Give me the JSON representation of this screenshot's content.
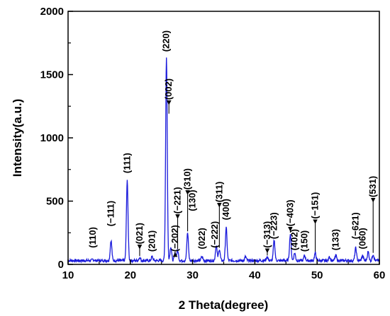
{
  "chart_data": {
    "type": "line",
    "title": "",
    "xlabel": "2 Theta(degree)",
    "ylabel": "Intensity(a.u.)",
    "xlim": [
      10,
      60
    ],
    "ylim": [
      0,
      2000
    ],
    "x_ticks": [
      "10",
      "20",
      "30",
      "40",
      "50",
      "60"
    ],
    "y_ticks": [
      "0",
      "500",
      "1000",
      "1500",
      "2000"
    ],
    "legend": "none",
    "grid": false,
    "line_color": "#1a1adb",
    "baseline": 30,
    "series": [
      {
        "peaks": [
          {
            "x": 14.0,
            "y": 40
          },
          {
            "x": 16.9,
            "y": 190
          },
          {
            "x": 19.5,
            "y": 660
          },
          {
            "x": 21.5,
            "y": 55
          },
          {
            "x": 23.5,
            "y": 60
          },
          {
            "x": 25.8,
            "y": 1640
          },
          {
            "x": 26.5,
            "y": 140
          },
          {
            "x": 27.2,
            "y": 90
          },
          {
            "x": 27.6,
            "y": 110
          },
          {
            "x": 29.2,
            "y": 250
          },
          {
            "x": 31.5,
            "y": 60
          },
          {
            "x": 33.8,
            "y": 150
          },
          {
            "x": 34.3,
            "y": 120
          },
          {
            "x": 35.4,
            "y": 290
          },
          {
            "x": 38.5,
            "y": 60
          },
          {
            "x": 42.0,
            "y": 60
          },
          {
            "x": 43.1,
            "y": 190
          },
          {
            "x": 45.7,
            "y": 240
          },
          {
            "x": 46.4,
            "y": 90
          },
          {
            "x": 48.0,
            "y": 70
          },
          {
            "x": 49.7,
            "y": 90
          },
          {
            "x": 52.0,
            "y": 60
          },
          {
            "x": 53.0,
            "y": 70
          },
          {
            "x": 56.2,
            "y": 130
          },
          {
            "x": 57.3,
            "y": 70
          },
          {
            "x": 58.2,
            "y": 100
          },
          {
            "x": 59.0,
            "y": 80
          }
        ]
      }
    ],
    "annotations": [
      {
        "text": "(110)",
        "x": 14.0,
        "y": 40,
        "label_y": 130,
        "arrow": false
      },
      {
        "text": "(−111)",
        "x": 16.9,
        "y": 190,
        "label_y": 300,
        "arrow": false
      },
      {
        "text": "(111)",
        "x": 19.5,
        "y": 660,
        "label_y": 720,
        "arrow": false
      },
      {
        "text": "(021)",
        "x": 21.5,
        "y": 55,
        "label_y": 160,
        "arrow": true
      },
      {
        "text": "(201)",
        "x": 23.5,
        "y": 60,
        "label_y": 100,
        "arrow": false
      },
      {
        "text": "(220)",
        "x": 25.8,
        "y": 1640,
        "label_y": 1680,
        "arrow": false
      },
      {
        "text": "(002)",
        "x": 26.2,
        "y": 1180,
        "label_y": 1300,
        "arrow": true
      },
      {
        "text": "(−202)",
        "x": 27.2,
        "y": 90,
        "label_y": 100,
        "arrow": true
      },
      {
        "text": "(−221)",
        "x": 27.6,
        "y": 110,
        "label_y": 400,
        "arrow": true
      },
      {
        "text": "(310)",
        "x": 29.2,
        "y": 250,
        "label_y": 590,
        "arrow": true
      },
      {
        "text": "(130)",
        "x": 30.0,
        "y": 150,
        "label_y": 420,
        "arrow": false
      },
      {
        "text": "(022)",
        "x": 31.5,
        "y": 60,
        "label_y": 120,
        "arrow": false
      },
      {
        "text": "(−222)",
        "x": 33.6,
        "y": 150,
        "label_y": 130,
        "arrow": false
      },
      {
        "text": "(311)",
        "x": 34.3,
        "y": 120,
        "label_y": 490,
        "arrow": true
      },
      {
        "text": "(400)",
        "x": 35.4,
        "y": 290,
        "label_y": 350,
        "arrow": false
      },
      {
        "text": "(−313)",
        "x": 42.0,
        "y": 60,
        "label_y": 130,
        "arrow": true
      },
      {
        "text": "(−223)",
        "x": 43.1,
        "y": 190,
        "label_y": 200,
        "arrow": false
      },
      {
        "text": "(−403)",
        "x": 45.7,
        "y": 240,
        "label_y": 300,
        "arrow": true
      },
      {
        "text": "(402)",
        "x": 46.4,
        "y": 90,
        "label_y": 110,
        "arrow": false
      },
      {
        "text": "(150)",
        "x": 48.0,
        "y": 70,
        "label_y": 100,
        "arrow": false
      },
      {
        "text": "(−151)",
        "x": 49.7,
        "y": 90,
        "label_y": 360,
        "arrow": true
      },
      {
        "text": "(133)",
        "x": 53.0,
        "y": 70,
        "label_y": 110,
        "arrow": false
      },
      {
        "text": "(−621)",
        "x": 56.2,
        "y": 130,
        "label_y": 200,
        "arrow": false
      },
      {
        "text": "(060)",
        "x": 57.3,
        "y": 70,
        "label_y": 120,
        "arrow": false
      },
      {
        "text": "(531)",
        "x": 59.0,
        "y": 80,
        "label_y": 530,
        "arrow": true
      }
    ]
  }
}
